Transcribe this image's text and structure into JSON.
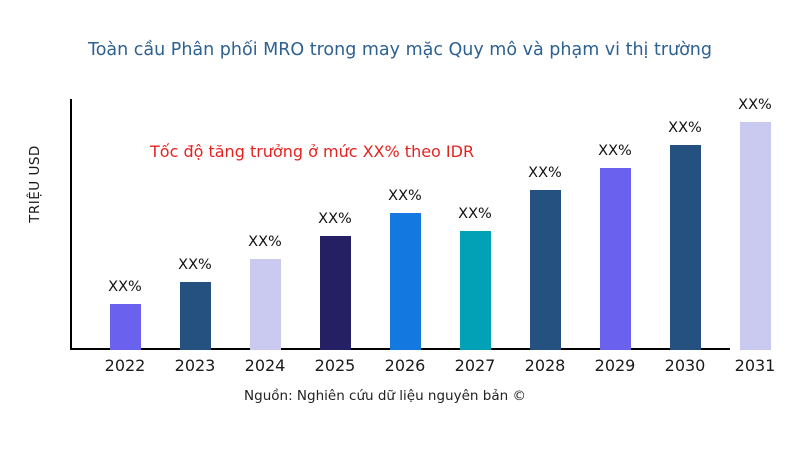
{
  "title": "Toàn cầu Phân phối MRO trong may mặc Quy mô và phạm vi thị trường",
  "annotation": "Tốc độ tăng trưởng ở mức XX% theo IDR",
  "source": "Nguồn: Nghiên cứu dữ liệu nguyên bản ©",
  "colors": {
    "title": "#2d6192",
    "annotation": "#e42320",
    "axis": "#000000",
    "bar_violet": "#6b61ef",
    "bar_dark_blue": "#24517f",
    "bar_lavender": "#cacaf0",
    "bar_navy": "#251f63",
    "bar_bright_blue": "#1379e0",
    "bar_teal": "#03a1b5"
  },
  "chart_data": {
    "type": "bar",
    "title": "Toàn cầu Phân phối MRO trong may mặc Quy mô và phạm vi thị trường",
    "xlabel": "",
    "ylabel": "TRIỆU USD",
    "categories": [
      "2022",
      "2023",
      "2024",
      "2025",
      "2026",
      "2027",
      "2028",
      "2029",
      "2030",
      "2031"
    ],
    "values": [
      20,
      30,
      40,
      50,
      60,
      52,
      70,
      80,
      90,
      100
    ],
    "values_note": "actual figures masked in source; values are relative bar heights as % of tallest bar",
    "bar_labels": [
      "XX%",
      "XX%",
      "XX%",
      "XX%",
      "XX%",
      "XX%",
      "XX%",
      "XX%",
      "XX%",
      "XX%"
    ],
    "bar_colors": [
      "#6b61ef",
      "#24517f",
      "#cacaf0",
      "#251f63",
      "#1379e0",
      "#03a1b5",
      "#24517f",
      "#6b61ef",
      "#24517f",
      "#cacaf0"
    ],
    "ylim": [
      0,
      100
    ],
    "grid": false,
    "legend": false,
    "annotation": "Tốc độ tăng trưởng ở mức XX% theo IDR"
  }
}
